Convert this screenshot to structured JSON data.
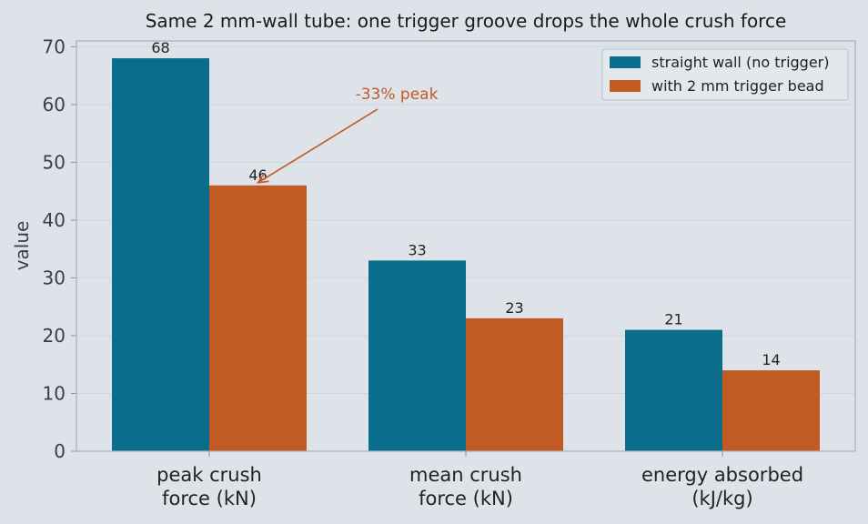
{
  "chart_data": {
    "type": "bar",
    "title": "Same 2 mm-wall tube: one trigger groove drops the whole crush force",
    "xlabel": "",
    "ylabel": "value",
    "ylim": [
      0,
      70
    ],
    "yticks": [
      0,
      10,
      20,
      30,
      40,
      50,
      60,
      70
    ],
    "categories": [
      [
        "peak crush",
        "force (kN)"
      ],
      [
        "mean crush",
        "force (kN)"
      ],
      [
        "energy absorbed",
        "(kJ/kg)"
      ]
    ],
    "series": [
      {
        "name": "straight wall (no trigger)",
        "color": "#0b6d8c",
        "values": [
          68,
          33,
          21
        ],
        "labels": [
          "68",
          "33",
          "21"
        ]
      },
      {
        "name": "with 2 mm trigger bead",
        "color": "#c25a24",
        "values": [
          46,
          23,
          14
        ],
        "labels": [
          "46",
          "23",
          "14"
        ]
      }
    ],
    "grid": true,
    "legend": "top-right",
    "annotation": {
      "text": "-33% peak",
      "color": "#c25a24",
      "target_category": 0,
      "target_series": 1
    }
  }
}
